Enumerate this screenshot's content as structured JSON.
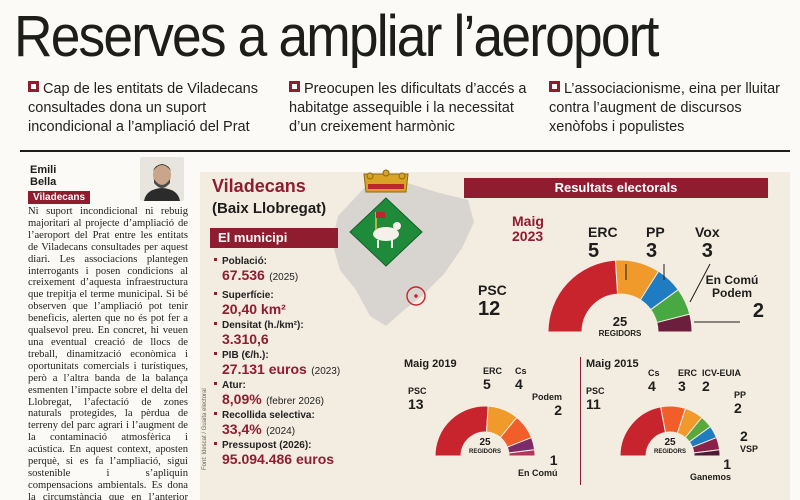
{
  "headline": "Reserves a ampliar l’aeroport",
  "bullets": [
    "Cap de les entitats de Viladecans consultades dona un suport incondicional a l’ampliació del Prat",
    "Preocupen les dificultats d’accés a habitatge assequible i la necessitat d’un creixement harmònic",
    "L’associacionisme, eina per lluitar contra l’augment de discursos xenòfobs i populistes"
  ],
  "author": {
    "first": "Emili",
    "last": "Bella",
    "section_tag": "Viladecans"
  },
  "article_text": "Ni suport incondicional ni rebuig majoritari al projecte d’ampliació de l’aeroport del Prat entre les entitats de Viladecans consultades per aquest diari. Les associacions plantegen interrogants i posen condicions al creixement d’aquesta infraestructura que trepitja el terme municipal. Si bé observen que l’ampliació pot tenir beneficis, alerten que no és pot fer a qualsevol preu. En concret, hi veuen una eventual creació de llocs de treball, dinamització econòmica i oportunitats comercials i turístiques, però a l’altra banda de la balança esmenten l’impacte sobre el delta del Llobregat, l’afectació de zones naturals protegides, la pèrdua de terreny del parc agrari i l’augment de la contaminació atmosfèrica i acústica. En aquest context, aposten perquè, si es fa l’ampliació, sigui sostenible i s’apliquin compensacions ambientals. Es dona la circumstància que en l’anterior ampliació no es van",
  "infographic": {
    "city": "Viladecans",
    "comarca": "(Baix Llobregat)",
    "municipi_header": "El municipi",
    "credit": "Font: Idescat / Guaita electoral",
    "stats": [
      {
        "label": "Població:",
        "value": "67.536",
        "note": "(2025)"
      },
      {
        "label": "Superfície:",
        "value": "20,40 km²",
        "note": ""
      },
      {
        "label": "Densitat (h./km²):",
        "value": "3.310,6",
        "note": ""
      },
      {
        "label": "PIB (€/h.):",
        "value": "27.131 euros",
        "note": "(2023)"
      },
      {
        "label": "Atur:",
        "value": "8,09%",
        "note": "(febrer 2026)"
      },
      {
        "label": "Recollida selectiva:",
        "value": "33,4%",
        "note": "(2024)"
      },
      {
        "label": "Pressupost (2026):",
        "value": "95.094.486 euros",
        "note": ""
      }
    ],
    "results_header": "Resultats electorals",
    "regidors_total": "25",
    "regidors_label": "REGIDORS",
    "e2023": {
      "year": "Maig 2023",
      "month": "Maig",
      "yr": "2023",
      "parties": [
        {
          "name": "PSC",
          "seats": 12,
          "color": "#c8242d"
        },
        {
          "name": "ERC",
          "seats": 5,
          "color": "#ef9a2b"
        },
        {
          "name": "PP",
          "seats": 3,
          "color": "#1f7cc1"
        },
        {
          "name": "Vox",
          "seats": 3,
          "color": "#48a841"
        },
        {
          "name": "En Comú Podem",
          "seats": 2,
          "color": "#6b1f3c"
        }
      ]
    },
    "e2019": {
      "year": "Maig 2019",
      "parties": [
        {
          "name": "PSC",
          "seats": 13,
          "color": "#c8242d"
        },
        {
          "name": "ERC",
          "seats": 5,
          "color": "#ef9a2b"
        },
        {
          "name": "Cs",
          "seats": 4,
          "color": "#f25e2a"
        },
        {
          "name": "Podem",
          "seats": 2,
          "color": "#7c2a68"
        },
        {
          "name": "En Comú",
          "seats": 1,
          "color": "#b3345c"
        }
      ]
    },
    "e2015": {
      "year": "Maig 2015",
      "parties": [
        {
          "name": "PSC",
          "seats": 11,
          "color": "#c8242d"
        },
        {
          "name": "Cs",
          "seats": 4,
          "color": "#f25e2a"
        },
        {
          "name": "ERC",
          "seats": 3,
          "color": "#ef9a2b"
        },
        {
          "name": "ICV-EUIA",
          "seats": 2,
          "color": "#5aa83c"
        },
        {
          "name": "PP",
          "seats": 2,
          "color": "#1f7cc1"
        },
        {
          "name": "VSP",
          "seats": 2,
          "color": "#8a2149"
        },
        {
          "name": "Ganemos",
          "seats": 1,
          "color": "#4d1a35"
        }
      ]
    }
  }
}
